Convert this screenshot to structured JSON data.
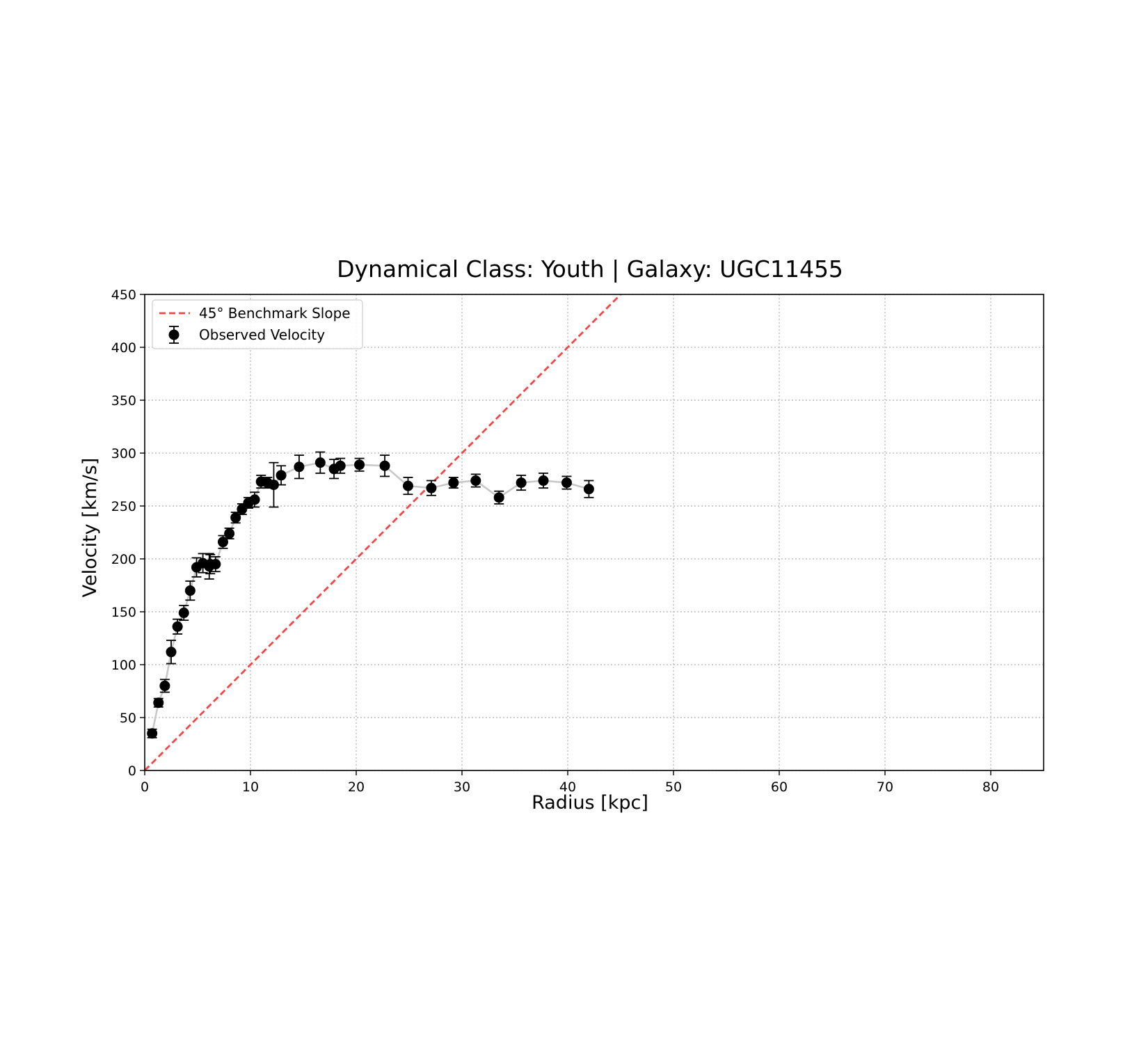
{
  "chart_data": {
    "type": "scatter",
    "title": "Dynamical Class: Youth | Galaxy: UGC11455",
    "xlabel": "Radius [kpc]",
    "ylabel": "Velocity [km/s]",
    "xlim": [
      0,
      85
    ],
    "ylim": [
      0,
      450
    ],
    "xticks": [
      "0",
      "10",
      "20",
      "30",
      "40",
      "50",
      "60",
      "70",
      "80"
    ],
    "yticks": [
      "0",
      "50",
      "100",
      "150",
      "200",
      "250",
      "300",
      "350",
      "400",
      "450"
    ],
    "grid": true,
    "legend": {
      "placement": "top-left",
      "entries": [
        "45° Benchmark Slope",
        "Observed Velocity"
      ]
    },
    "series": [
      {
        "name": "45° Benchmark Slope",
        "kind": "line",
        "style": "dashed",
        "color": "#f04646",
        "x": [
          0,
          45
        ],
        "y": [
          0,
          450
        ]
      },
      {
        "name": "Observed Velocity",
        "kind": "errorbar",
        "color": "#000000",
        "connector_color": "#c8c8c8",
        "x": [
          0.7,
          1.3,
          1.9,
          2.5,
          3.1,
          3.7,
          4.3,
          4.9,
          5.5,
          6.1,
          6.2,
          6.7,
          7.4,
          8.0,
          8.6,
          9.2,
          9.8,
          10.4,
          11.0,
          11.6,
          12.2,
          12.9,
          14.6,
          16.6,
          17.9,
          18.5,
          20.3,
          22.7,
          24.9,
          27.1,
          29.2,
          31.3,
          33.5,
          35.6,
          37.7,
          39.9,
          42.0
        ],
        "y": [
          35,
          64,
          80,
          112,
          136,
          149,
          170,
          192,
          196,
          193,
          195,
          195,
          216,
          224,
          239,
          247,
          253,
          256,
          273,
          272,
          270,
          279,
          287,
          291,
          285,
          288,
          289,
          288,
          269,
          267,
          272,
          274,
          258,
          272,
          274,
          272,
          266
        ],
        "yerr": [
          4,
          4,
          6,
          11,
          7,
          7,
          9,
          9,
          9,
          12,
          9,
          7,
          6,
          5,
          5,
          5,
          5,
          7,
          6,
          5,
          21,
          9,
          11,
          10,
          9,
          7,
          6,
          10,
          8,
          7,
          5,
          6,
          6,
          7,
          7,
          6,
          8
        ]
      }
    ]
  }
}
